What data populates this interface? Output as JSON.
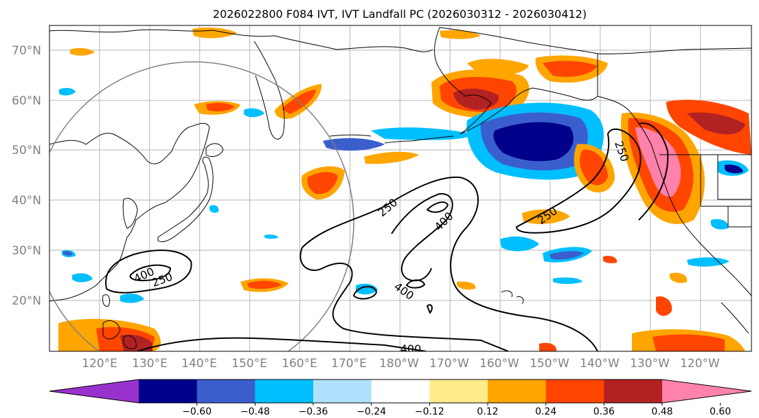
{
  "title": "2026022800 F084 IVT, IVT Landfall PC (2026030312 - 2026030412)",
  "lat_labels": [
    "70°N",
    "60°N",
    "50°N",
    "40°N",
    "30°N",
    "20°N"
  ],
  "lon_labels": [
    "120°E",
    "130°E",
    "140°E",
    "150°E",
    "160°E",
    "170°E",
    "180°W",
    "170°W",
    "160°W",
    "150°W",
    "140°W",
    "130°W",
    "120°W"
  ],
  "contour_labels": [
    "250",
    "400",
    "400",
    "250",
    "400",
    "250",
    "250",
    "400"
  ],
  "colorbar": {
    "colors": [
      "#9932cc",
      "#00008b",
      "#3a5fcd",
      "#00bfff",
      "#b0e2ff",
      "#ffffff",
      "#ffec8b",
      "#ffa500",
      "#ff4500",
      "#b22222",
      "#ff82ab"
    ],
    "tick_labels": [
      "−0.60",
      "−0.48",
      "−0.36",
      "−0.24",
      "−0.12",
      "0.12",
      "0.24",
      "0.36",
      "0.48",
      "0.60"
    ]
  }
}
